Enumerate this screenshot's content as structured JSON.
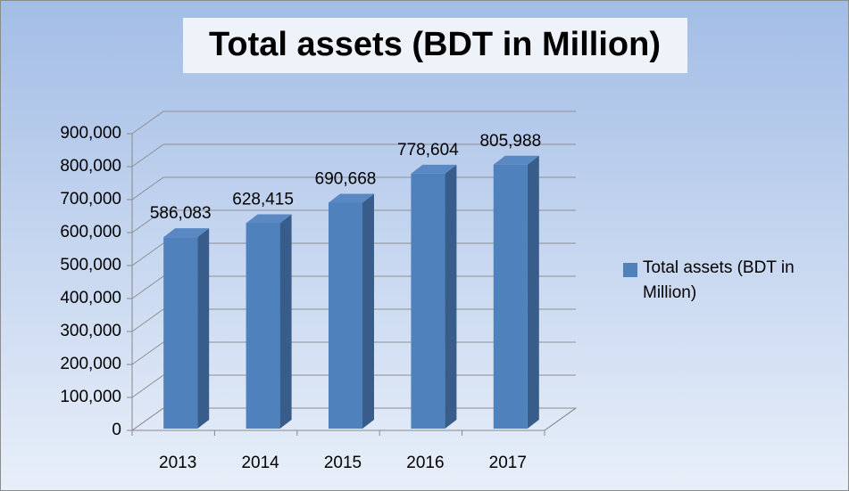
{
  "chart_data": {
    "type": "bar",
    "title": "Total assets (BDT in Million)",
    "categories": [
      "2013",
      "2014",
      "2015",
      "2016",
      "2017"
    ],
    "series": [
      {
        "name": "Total assets (BDT in Million)",
        "color": "#4f81bd",
        "values": [
          586083,
          628415,
          690668,
          778604,
          805988
        ],
        "value_labels": [
          "586,083",
          "628,415",
          "690,668",
          "778,604",
          "805,988"
        ]
      }
    ],
    "ylim": [
      0,
      900000
    ],
    "yticks": [
      0,
      {
        "value": 100000,
        "label": "100,000"
      },
      {
        "value": 200000,
        "label": "200,000"
      },
      {
        "value": 300000,
        "label": "300,000"
      },
      {
        "value": 400000,
        "label": "400,000"
      },
      {
        "value": 500000,
        "label": "500,000"
      },
      {
        "value": 600000,
        "label": "600,000"
      },
      {
        "value": 700000,
        "label": "700,000"
      },
      {
        "value": 800000,
        "label": "800,000"
      },
      {
        "value": 900000,
        "label": "900,000"
      }
    ],
    "grid": true,
    "legend": "right"
  }
}
